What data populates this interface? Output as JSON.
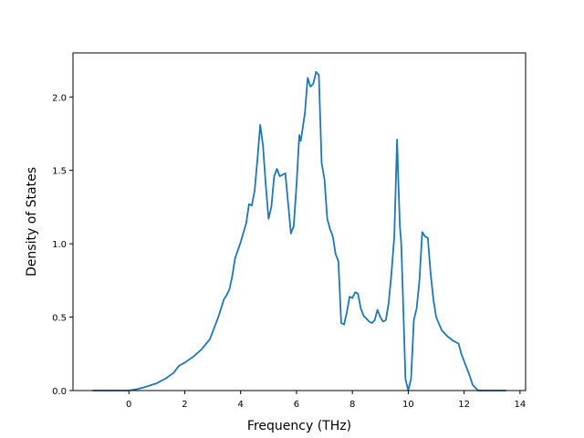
{
  "chart_data": {
    "type": "line",
    "title": "",
    "xlabel": "Frequency (THz)",
    "ylabel": "Density of States",
    "xlim": [
      -2.0,
      14.2
    ],
    "ylim": [
      0.0,
      2.3
    ],
    "xticks": [
      0,
      2,
      4,
      6,
      8,
      10,
      12,
      14
    ],
    "xtick_labels": [
      "0",
      "2",
      "4",
      "6",
      "8",
      "10",
      "12",
      "14"
    ],
    "yticks": [
      0.0,
      0.5,
      1.0,
      1.5,
      2.0
    ],
    "ytick_labels": [
      "0.0",
      "0.5",
      "1.0",
      "1.5",
      "2.0"
    ],
    "grid": false,
    "series": [
      {
        "color": "#1f77b4",
        "x": [
          -1.3,
          -0.5,
          0.0,
          0.3,
          0.6,
          1.0,
          1.3,
          1.6,
          1.8,
          2.0,
          2.3,
          2.6,
          2.9,
          3.0,
          3.2,
          3.4,
          3.5,
          3.6,
          3.7,
          3.8,
          4.0,
          4.2,
          4.3,
          4.4,
          4.5,
          4.6,
          4.7,
          4.8,
          4.9,
          5.0,
          5.1,
          5.2,
          5.3,
          5.4,
          5.5,
          5.6,
          5.8,
          5.9,
          6.0,
          6.1,
          6.15,
          6.2,
          6.3,
          6.4,
          6.5,
          6.6,
          6.7,
          6.8,
          6.9,
          7.0,
          7.1,
          7.2,
          7.3,
          7.4,
          7.5,
          7.6,
          7.7,
          7.8,
          7.9,
          8.0,
          8.1,
          8.2,
          8.3,
          8.4,
          8.5,
          8.6,
          8.7,
          8.8,
          8.9,
          9.0,
          9.1,
          9.2,
          9.3,
          9.4,
          9.5,
          9.6,
          9.65,
          9.7,
          9.75,
          9.8,
          9.9,
          10.0,
          10.1,
          10.2,
          10.3,
          10.4,
          10.5,
          10.6,
          10.7,
          10.8,
          10.9,
          11.0,
          11.2,
          11.4,
          11.6,
          11.8,
          11.9,
          12.0,
          12.2,
          12.3,
          12.5,
          13.0,
          13.5
        ],
        "y": [
          0.0,
          0.0,
          0.0,
          0.01,
          0.025,
          0.05,
          0.08,
          0.12,
          0.17,
          0.19,
          0.23,
          0.28,
          0.35,
          0.4,
          0.5,
          0.62,
          0.65,
          0.69,
          0.78,
          0.9,
          1.01,
          1.14,
          1.27,
          1.26,
          1.36,
          1.57,
          1.81,
          1.67,
          1.4,
          1.17,
          1.25,
          1.46,
          1.51,
          1.46,
          1.47,
          1.48,
          1.07,
          1.12,
          1.4,
          1.74,
          1.7,
          1.76,
          1.89,
          2.13,
          2.07,
          2.09,
          2.17,
          2.15,
          1.55,
          1.44,
          1.17,
          1.1,
          1.05,
          0.93,
          0.88,
          0.46,
          0.45,
          0.53,
          0.64,
          0.63,
          0.67,
          0.66,
          0.56,
          0.51,
          0.49,
          0.47,
          0.46,
          0.48,
          0.55,
          0.5,
          0.47,
          0.48,
          0.6,
          0.8,
          1.05,
          1.71,
          1.4,
          1.12,
          1.0,
          0.7,
          0.08,
          0.0,
          0.08,
          0.48,
          0.56,
          0.75,
          1.08,
          1.05,
          1.04,
          0.8,
          0.62,
          0.5,
          0.41,
          0.37,
          0.34,
          0.32,
          0.25,
          0.2,
          0.1,
          0.04,
          0.0,
          0.0,
          0.0
        ]
      }
    ]
  }
}
